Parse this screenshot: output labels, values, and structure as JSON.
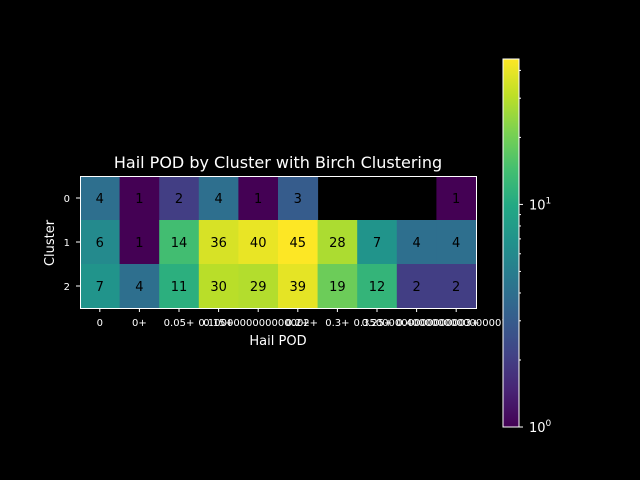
{
  "chart_data": {
    "type": "heatmap",
    "title": "Hail POD by Cluster with Birch Clustering",
    "xlabel": "Hail POD",
    "ylabel": "Cluster",
    "x_categories": [
      "0",
      "0+",
      "0.05+",
      "0.15+",
      "0.1000000000000002+",
      "0.2+",
      "0.3+",
      "0.25+",
      "0.35000000000000003+",
      "0.4000000000000001+"
    ],
    "x_tick_labels": [
      "0",
      "0+",
      "0.05+",
      "0.15+",
      "0.1000000000000002+",
      "0.2+",
      "0.3+",
      "0.25+",
      "0.35000000000000003+",
      "0.4000000000000001+"
    ],
    "y_categories": [
      "0",
      "1",
      "2"
    ],
    "values": [
      [
        4,
        1,
        2,
        4,
        1,
        3,
        null,
        null,
        null,
        1
      ],
      [
        6,
        1,
        14,
        36,
        40,
        45,
        28,
        7,
        4,
        4
      ],
      [
        7,
        4,
        11,
        30,
        29,
        39,
        19,
        12,
        2,
        2
      ]
    ],
    "colorbar": {
      "scale": "log",
      "colormap": "viridis",
      "range": [
        1,
        45
      ],
      "tick_labels": [
        "10^0",
        "10^1"
      ]
    }
  }
}
